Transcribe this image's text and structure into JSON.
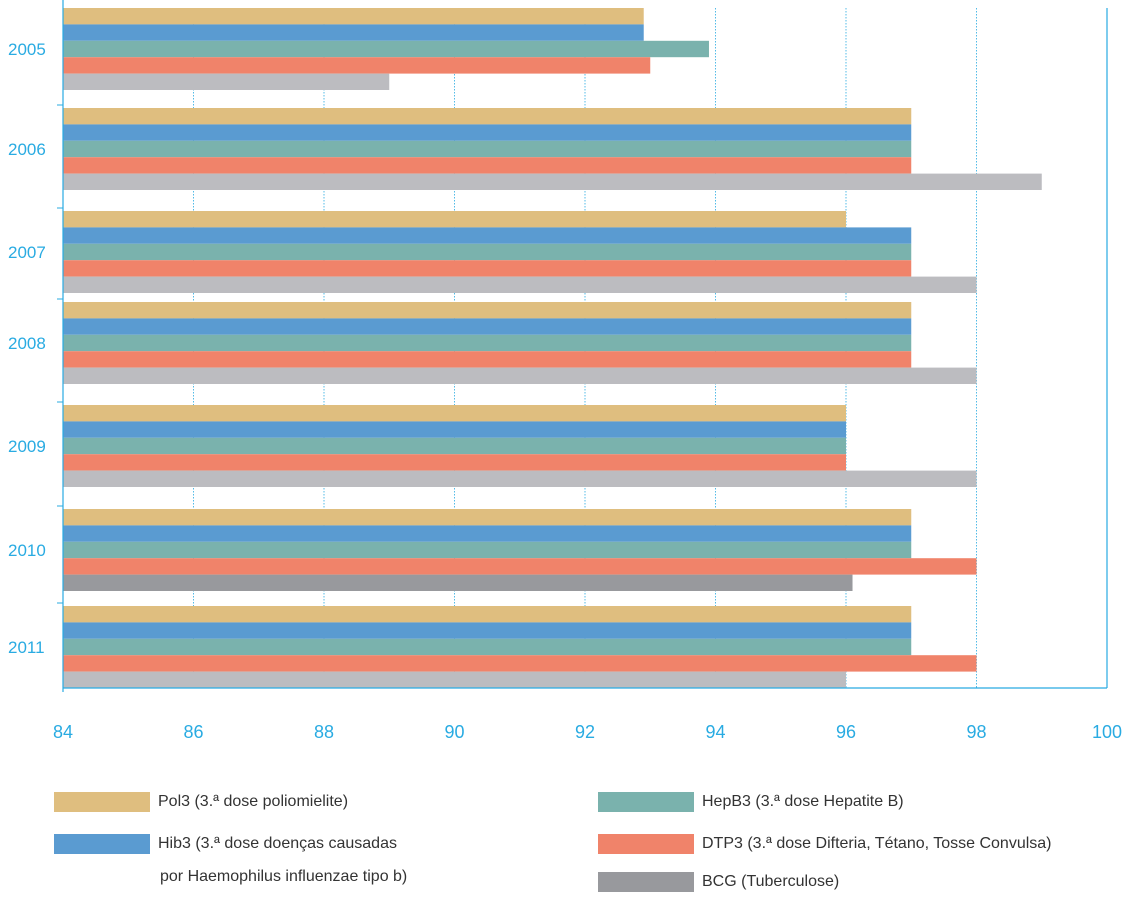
{
  "chart_data": {
    "type": "bar",
    "orientation": "horizontal",
    "categories": [
      "2005",
      "2006",
      "2007",
      "2008",
      "2009",
      "2010",
      "2011"
    ],
    "xlim": [
      84,
      100
    ],
    "xticks": [
      "84",
      "86",
      "88",
      "90",
      "92",
      "94",
      "96",
      "98",
      "100"
    ],
    "grid": "vertical dotted",
    "series": [
      {
        "name": "Pol3 (3.ª dose poliomielite)",
        "color": "#dfbe7f",
        "values": [
          92.9,
          97,
          96,
          97,
          96,
          97,
          97
        ]
      },
      {
        "name": "Hib3 (3.ª dose doenças causadas por Haemophilus influenzae tipo b)",
        "color": "#5a9bd1",
        "values": [
          92.9,
          97,
          97,
          97,
          96,
          97,
          97
        ]
      },
      {
        "name": "HepB3 (3.ª dose Hepatite B)",
        "color": "#7ab2ad",
        "values": [
          93.9,
          97,
          97,
          97,
          96,
          97,
          97
        ]
      },
      {
        "name": "DTP3 (3.ª dose Difteria, Tétano, Tosse Convulsa)",
        "color": "#f0836a",
        "values": [
          93,
          97,
          97,
          97,
          96,
          98,
          98
        ]
      },
      {
        "name": "BCG (Tuberculose)",
        "color": "#bcbcc0",
        "values": [
          89,
          99,
          98,
          98,
          98,
          96.1,
          96
        ]
      }
    ]
  },
  "colors": {
    "axis": "#29abe2",
    "tick_text": "#29abe2",
    "bcg_legend": "#98999d",
    "bcg_2010": "#98999d"
  },
  "legend": {
    "pol3": "Pol3 (3.ª dose poliomielite)",
    "hib3_line1": "Hib3 (3.ª dose doenças causadas",
    "hib3_line2": "por Haemophilus influenzae tipo b)",
    "hepb3": "HepB3 (3.ª dose Hepatite B)",
    "dtp3": "DTP3 (3.ª dose Difteria, Tétano, Tosse Convulsa)",
    "bcg": "BCG (Tuberculose)"
  }
}
